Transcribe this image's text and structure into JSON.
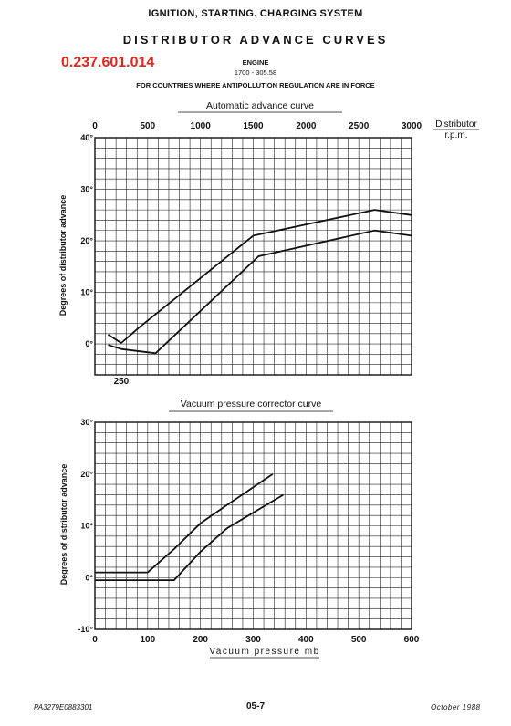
{
  "header": {
    "section_title": "IGNITION, STARTING. CHARGING SYSTEM",
    "page_title": "DISTRIBUTOR ADVANCE CURVES",
    "part_number": "0.237.601.014",
    "engine_label": "ENGINE",
    "engine_code": "1700 - 305.58",
    "countries_note": "FOR COUNTRIES WHERE ANTIPOLLUTION REGULATION ARE IN FORCE"
  },
  "footer": {
    "reference": "PA3279E0883301",
    "page_number": "05-7",
    "date": "October 1988"
  },
  "chart_data": [
    {
      "type": "line",
      "title": "Automatic advance curve",
      "xlabel": "Distributor r.p.m.",
      "ylabel": "Degrees of distributor advance",
      "xlim": [
        0,
        3000
      ],
      "ylim": [
        -6,
        40
      ],
      "x_tick_labels": [
        "0",
        "500",
        "1000",
        "1500",
        "2000",
        "2500",
        "3000"
      ],
      "x_tick_values": [
        0,
        500,
        1000,
        1500,
        2000,
        2500,
        3000
      ],
      "y_tick_labels": [
        "40°",
        "30°",
        "20°",
        "10°",
        "0°"
      ],
      "y_tick_values": [
        40,
        30,
        20,
        10,
        0
      ],
      "annotation_label": "250",
      "annotation_x": 250,
      "grid": true,
      "series": [
        {
          "x": [
            125,
            250,
            425,
            1500,
            2650,
            3000
          ],
          "y": [
            1.8,
            0.2,
            3.3,
            21,
            26,
            25
          ]
        },
        {
          "x": [
            125,
            250,
            575,
            1550,
            2650,
            3000
          ],
          "y": [
            -0.2,
            -1,
            -1.8,
            17,
            22,
            21
          ]
        }
      ]
    },
    {
      "type": "line",
      "title": "Vacuum pressure corrector curve",
      "xlabel": "Vacuum pressure mb",
      "ylabel": "Degrees of distributor advance",
      "xlim": [
        0,
        600
      ],
      "ylim": [
        -10,
        30
      ],
      "x_tick_labels": [
        "0",
        "100",
        "200",
        "300",
        "400",
        "500",
        "600"
      ],
      "x_tick_values": [
        0,
        100,
        200,
        300,
        400,
        500,
        600
      ],
      "y_tick_labels": [
        "30°",
        "20°",
        "10°",
        "0°",
        "-10°"
      ],
      "y_tick_values": [
        30,
        20,
        10,
        0,
        -10
      ],
      "grid": true,
      "series": [
        {
          "x": [
            0,
            100,
            150,
            200,
            250,
            337
          ],
          "y": [
            1,
            1,
            5.5,
            10.5,
            14,
            20
          ]
        },
        {
          "x": [
            0,
            150,
            200,
            250,
            357
          ],
          "y": [
            -0.5,
            -0.5,
            5,
            9.5,
            16
          ]
        }
      ]
    }
  ]
}
